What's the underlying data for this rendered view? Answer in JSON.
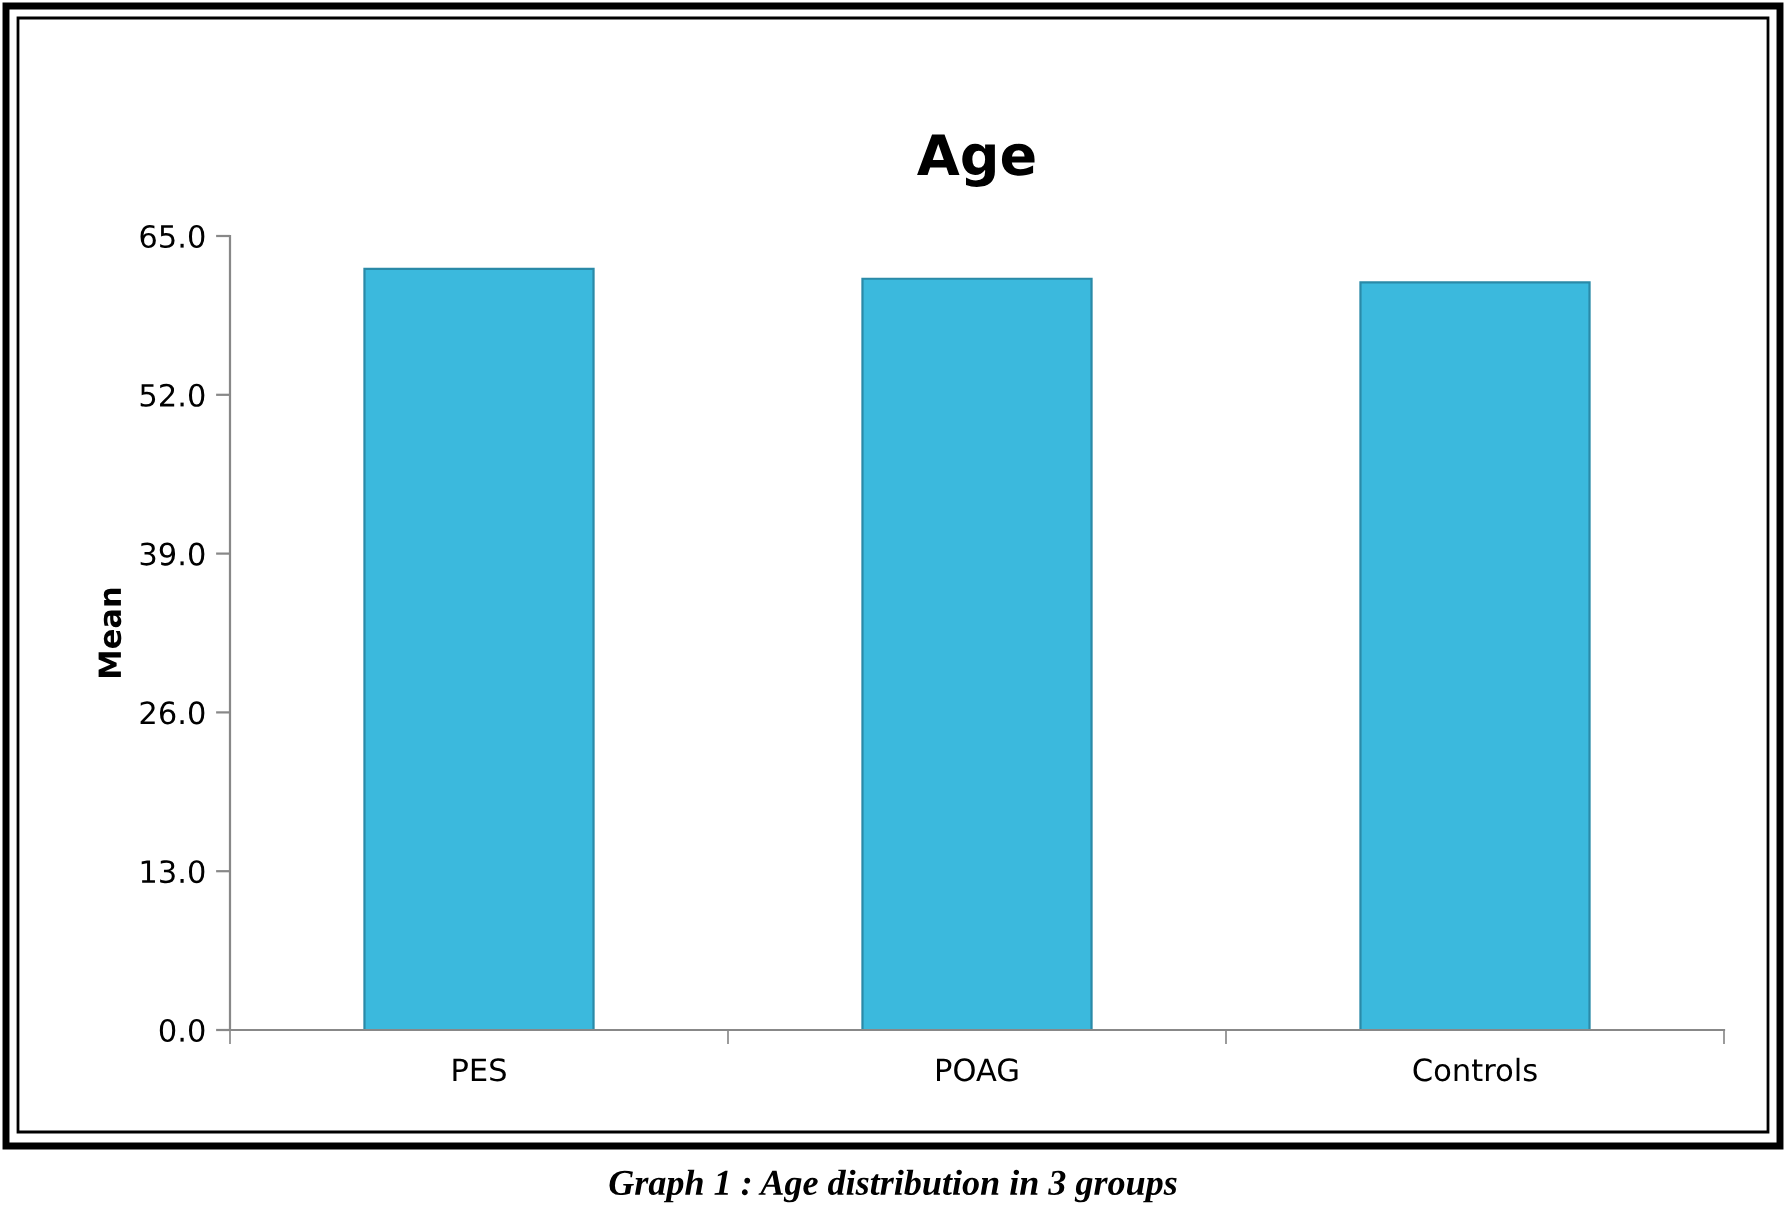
{
  "chart_data": {
    "type": "bar",
    "title": "Age",
    "ylabel": "Mean",
    "categories": [
      "PES",
      "POAG",
      "Controls"
    ],
    "values": [
      62.3,
      61.5,
      61.2
    ],
    "color": "#3bb9dd",
    "ylim": [
      0,
      65
    ],
    "yticks": [
      {
        "value": 0,
        "label": "0.0"
      },
      {
        "value": 13,
        "label": "13.0"
      },
      {
        "value": 26,
        "label": "26.0"
      },
      {
        "value": 39,
        "label": "39.0"
      },
      {
        "value": 52,
        "label": "52.0"
      },
      {
        "value": 65,
        "label": "65.0"
      }
    ],
    "grid": false,
    "legend": false,
    "annotations": [
      "Graph 1 : Age distribution in 3 groups"
    ]
  }
}
